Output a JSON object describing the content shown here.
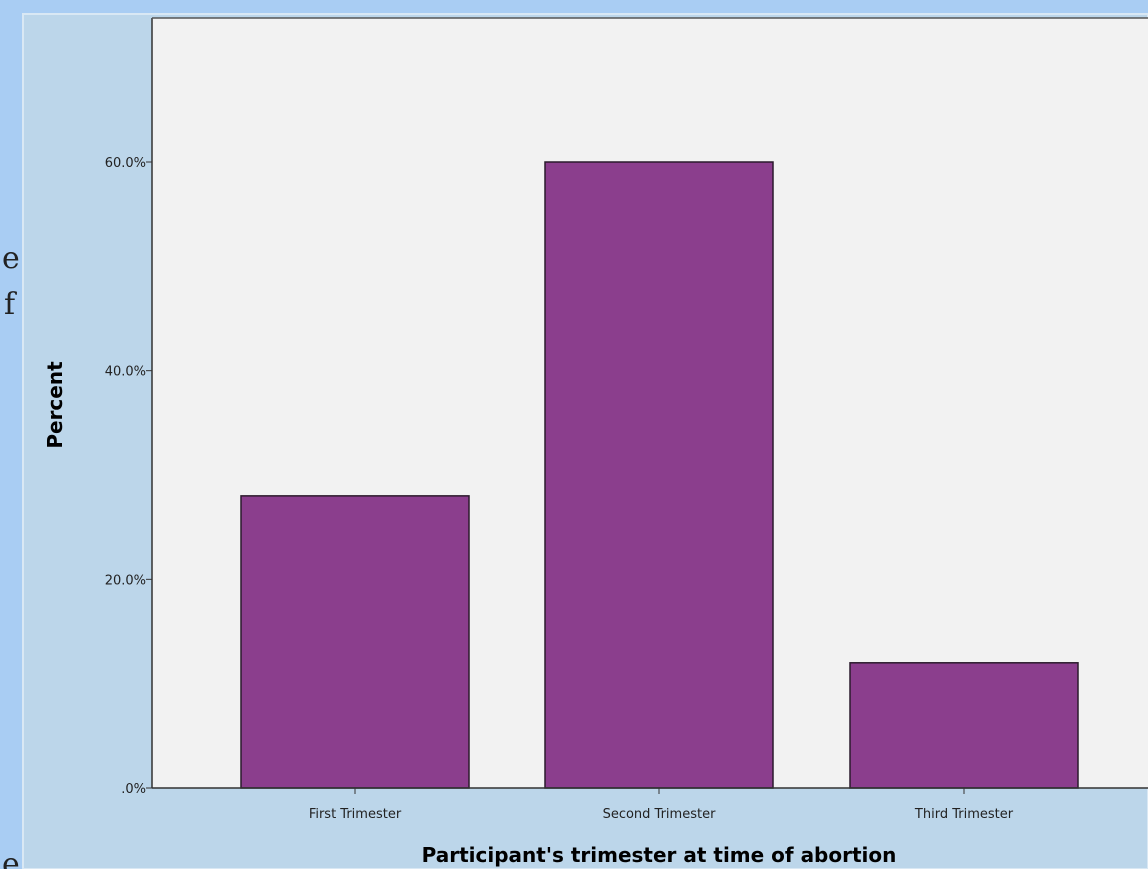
{
  "side_fragments": {
    "a": "e",
    "b": "f",
    "c": "e"
  },
  "colors": {
    "page_background": "#a9cdf3",
    "plot_background": "#f2f2f2",
    "outer_panel": "#bcd6ea",
    "bar_fill": "#8b3e8d",
    "bar_stroke": "#2b1a2c"
  },
  "chart_data": {
    "type": "bar",
    "categories": [
      "First Trimester",
      "Second Trimester",
      "Third Trimester"
    ],
    "values": [
      28,
      60,
      12
    ],
    "value_unit": "percent",
    "ylim": [
      0,
      75
    ],
    "yticks": [
      0,
      20,
      40,
      60
    ],
    "ytick_labels": [
      ".0%",
      "20.0%",
      "40.0%",
      "60.0%"
    ],
    "xlabel": "Participant's trimester at time of abortion",
    "ylabel": "Percent",
    "grid": false,
    "legend": "none"
  }
}
